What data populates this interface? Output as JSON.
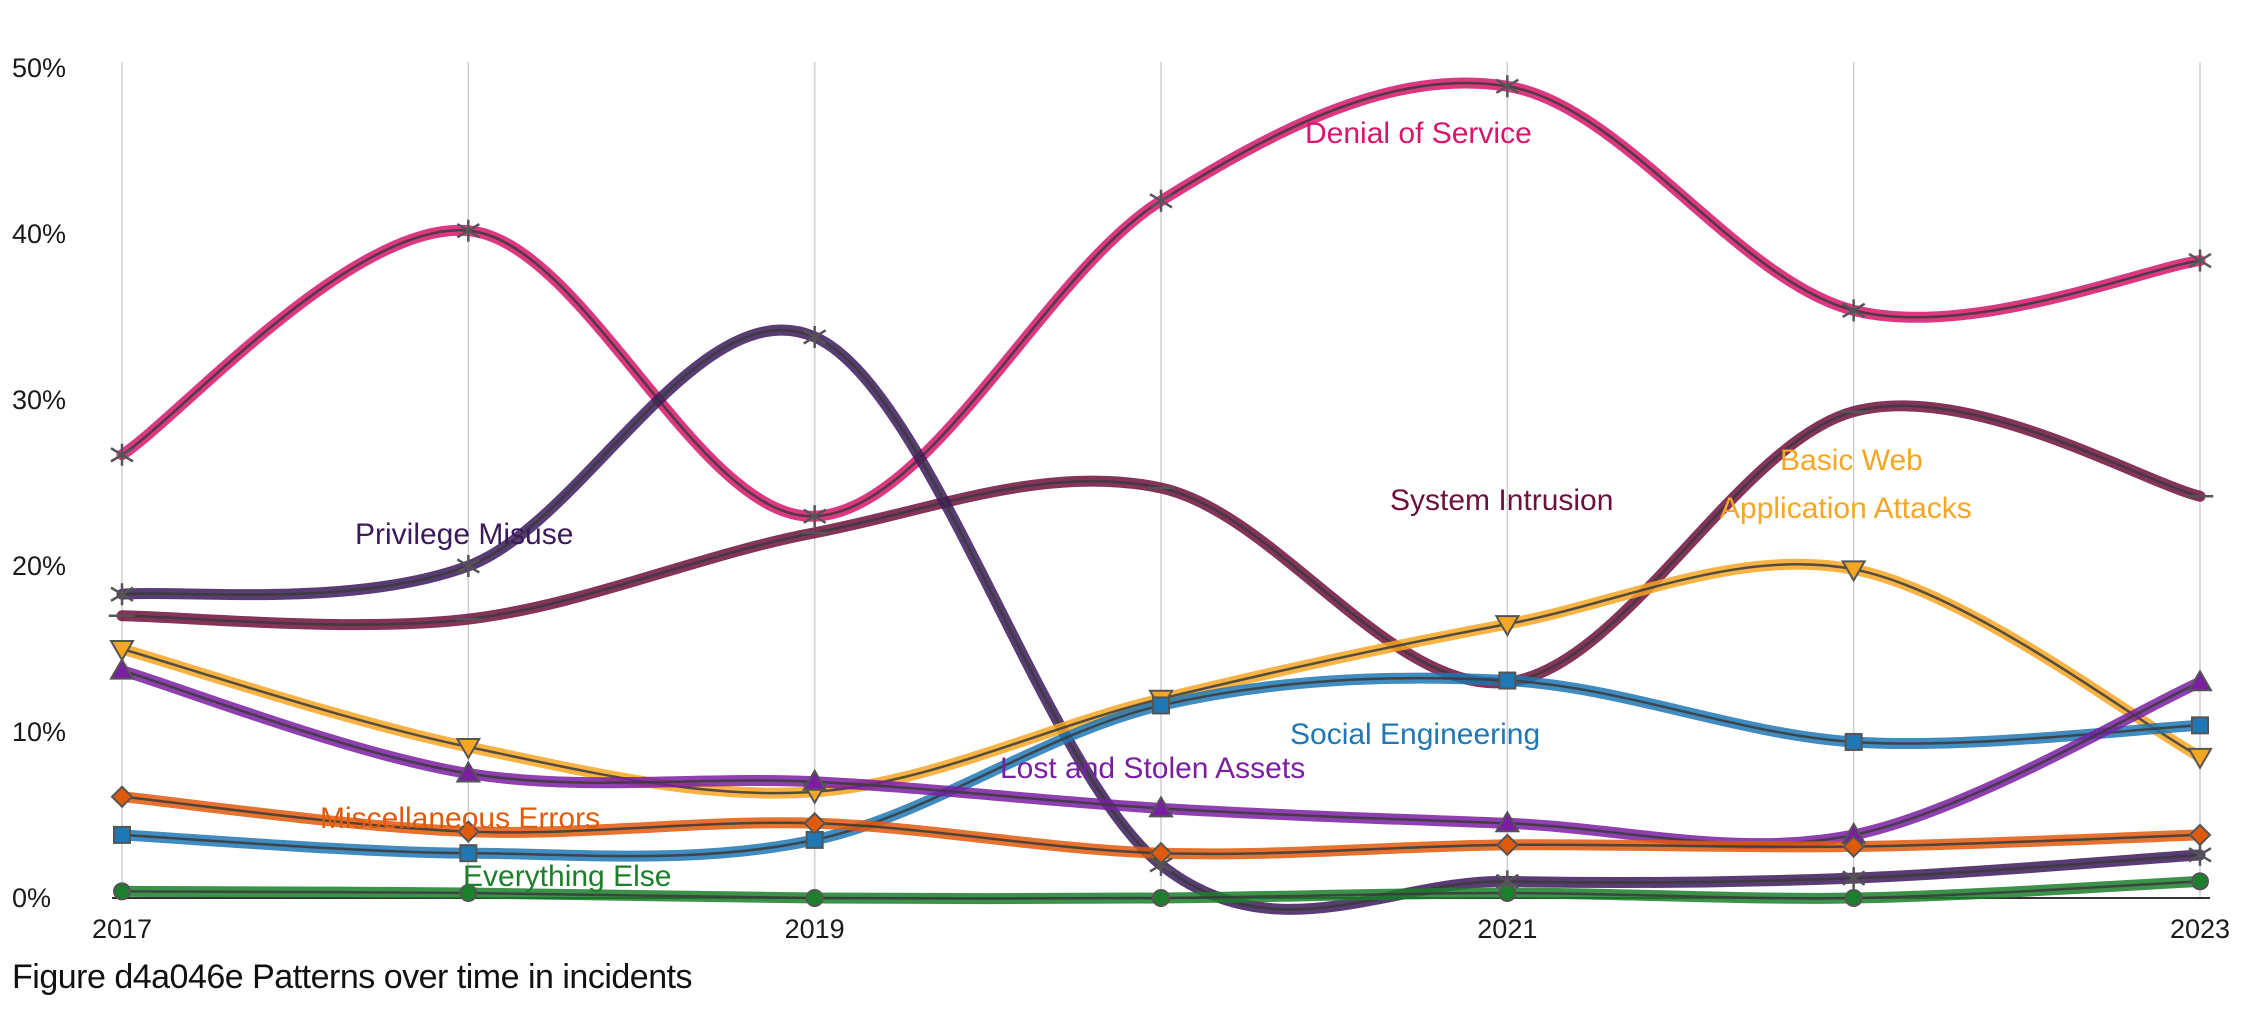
{
  "caption": "Figure d4a046e Patterns over time in incidents",
  "chart_data": {
    "type": "line",
    "x": [
      2017,
      2018,
      2019,
      2020,
      2021,
      2022,
      2023
    ],
    "x_tick_labels": [
      "2017",
      "2019",
      "2021",
      "2023"
    ],
    "x_tick_values": [
      2017,
      2019,
      2021,
      2023
    ],
    "y_ticks": [
      "0%",
      "10%",
      "20%",
      "30%",
      "40%",
      "50%"
    ],
    "y_tick_values": [
      0,
      10,
      20,
      30,
      40,
      50
    ],
    "ylim": [
      0,
      50
    ],
    "grid": "vertical",
    "legend": "inline labels",
    "series": [
      {
        "name": "Denial of Service",
        "color": "#d6156c",
        "marker": "star",
        "values": [
          26.7,
          40.2,
          23.0,
          42.0,
          48.9,
          35.4,
          38.4
        ]
      },
      {
        "name": "System Intrusion",
        "color": "#6e0f3c",
        "marker": "plus",
        "values": [
          17.0,
          16.8,
          22.0,
          24.7,
          13.0,
          29.3,
          24.2
        ]
      },
      {
        "name": "Privilege Misuse",
        "color": "#3c1a5b",
        "marker": "star",
        "values": [
          18.3,
          20.0,
          33.8,
          2.0,
          1.0,
          1.2,
          2.6
        ]
      },
      {
        "name": "Basic Web Application Attacks",
        "label_lines": [
          "Basic Web",
          "Application Attacks"
        ],
        "color": "#f6a623",
        "marker": "triangle-down",
        "values": [
          15.0,
          9.1,
          6.4,
          12.0,
          16.5,
          19.8,
          8.5
        ]
      },
      {
        "name": "Social Engineering",
        "color": "#1f77b4",
        "marker": "square",
        "values": [
          3.8,
          2.7,
          3.5,
          11.6,
          13.1,
          9.4,
          10.4
        ]
      },
      {
        "name": "Lost and Stolen Assets",
        "color": "#7a1fa2",
        "marker": "triangle-up",
        "values": [
          13.7,
          7.5,
          7.0,
          5.4,
          4.5,
          3.8,
          13.0
        ]
      },
      {
        "name": "Miscellaneous Errors",
        "color": "#e05a0b",
        "marker": "diamond",
        "values": [
          6.1,
          4.0,
          4.5,
          2.7,
          3.2,
          3.1,
          3.8
        ]
      },
      {
        "name": "Everything Else",
        "color": "#1b7f2b",
        "marker": "circle",
        "values": [
          0.4,
          0.3,
          0.0,
          0.0,
          0.3,
          0.0,
          1.0
        ]
      }
    ]
  }
}
